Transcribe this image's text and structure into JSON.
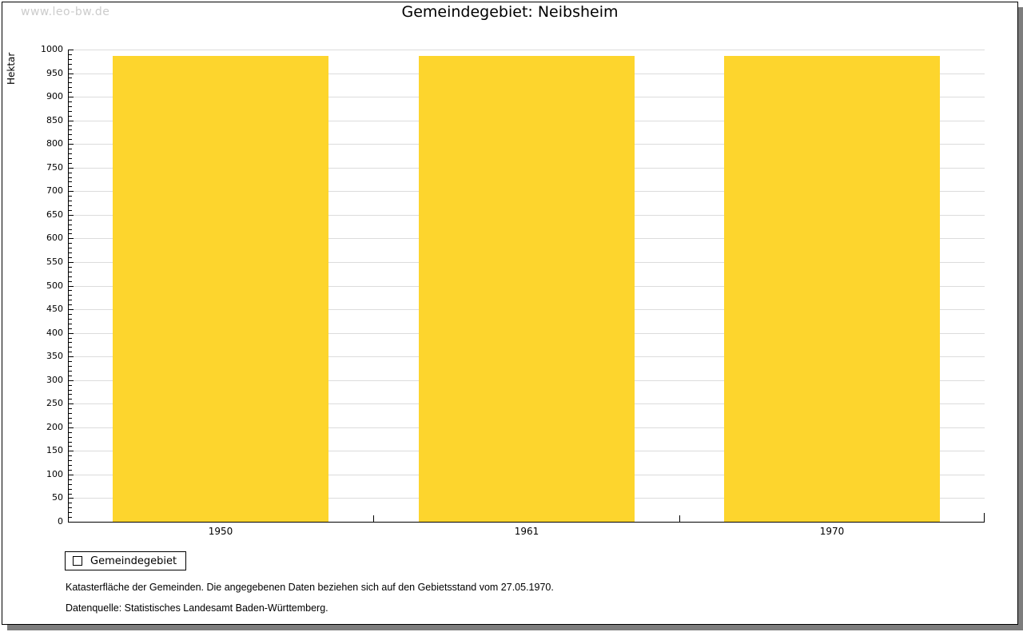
{
  "watermark": "www.leo-bw.de",
  "chart_data": {
    "type": "bar",
    "title": "Gemeindegebiet: Neibsheim",
    "ylabel": "Hektar",
    "xlabel": "",
    "categories": [
      "1950",
      "1961",
      "1970"
    ],
    "series": [
      {
        "name": "Gemeindegebiet",
        "color": "#fdd52d",
        "values": [
          986,
          986,
          986
        ]
      }
    ],
    "ylim": [
      0,
      1000
    ],
    "ytick_step": 50,
    "yminor_step": 10,
    "grid": true,
    "legend_position": "bottom-left"
  },
  "notes": [
    "Katasterfläche der Gemeinden. Die angegebenen Daten beziehen sich auf den Gebietsstand vom 27.05.1970.",
    "Datenquelle: Statistisches Landesamt Baden-Württemberg."
  ]
}
